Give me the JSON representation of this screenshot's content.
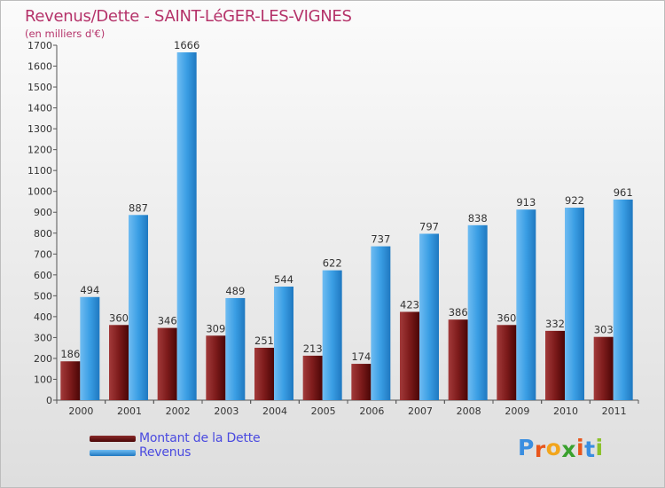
{
  "header": {
    "title": "Revenus/Dette - SAINT-LéGER-LES-VIGNES",
    "subtitle": "(en milliers d'€)"
  },
  "chart_data": {
    "type": "bar",
    "categories": [
      "2000",
      "2001",
      "2002",
      "2003",
      "2004",
      "2005",
      "2006",
      "2007",
      "2008",
      "2009",
      "2010",
      "2011"
    ],
    "series": [
      {
        "name": "Montant de la Dette",
        "color": "#7a1a1a",
        "values": [
          186,
          360,
          346,
          309,
          251,
          213,
          174,
          423,
          386,
          360,
          332,
          303
        ]
      },
      {
        "name": "Revenus",
        "color": "#3a9ee4",
        "values": [
          494,
          887,
          1666,
          489,
          544,
          622,
          737,
          797,
          838,
          913,
          922,
          961
        ]
      }
    ],
    "ylim": [
      0,
      1700
    ],
    "yticks": [
      0,
      100,
      200,
      300,
      400,
      500,
      600,
      700,
      800,
      900,
      1000,
      1100,
      1200,
      1300,
      1400,
      1500,
      1600,
      1700
    ],
    "grid": false,
    "legend_position": "bottom-left"
  },
  "legend": {
    "items": [
      {
        "label": "Montant de la Dette",
        "color": "#7a1a1a"
      },
      {
        "label": "Revenus",
        "color": "#3a9ee4"
      }
    ]
  },
  "logo": {
    "letters": [
      "P",
      "r",
      "o",
      "x",
      "i",
      "t",
      "i"
    ],
    "colors": [
      "#3a8ee0",
      "#e8561c",
      "#f2a51c",
      "#3aa12e",
      "#e8561c",
      "#3a8ee0",
      "#8bc12a"
    ]
  }
}
